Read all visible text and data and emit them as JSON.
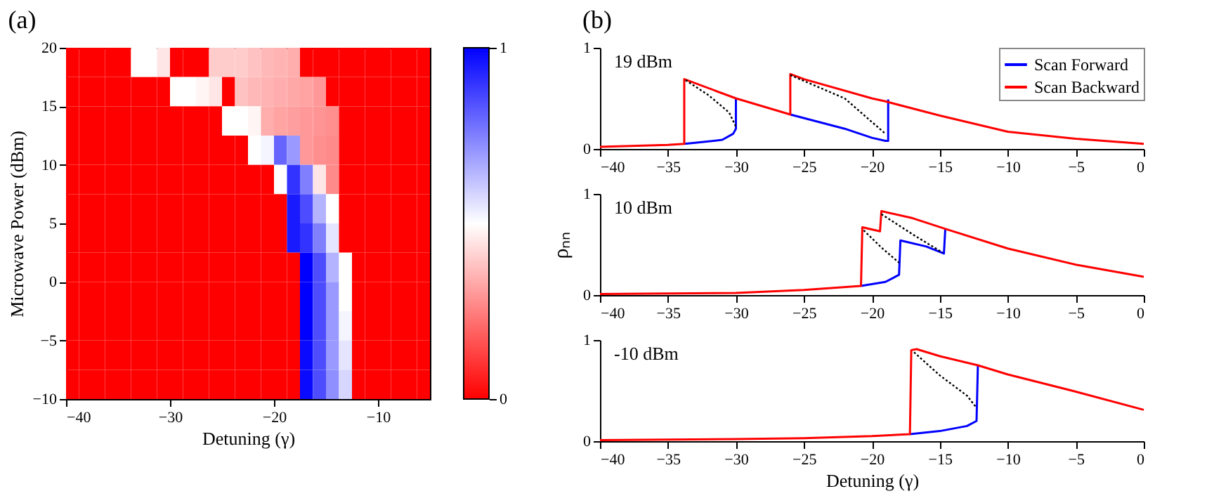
{
  "chart_data": [
    {
      "type": "heatmap",
      "title": "(a)",
      "xlabel": "Detuning (γ)",
      "ylabel": "Microwave Power (dBm)",
      "x": [
        -39.375,
        -38.125,
        -36.875,
        -35.625,
        -34.375,
        -33.125,
        -31.875,
        -30.625,
        -29.375,
        -28.125,
        -26.875,
        -25.625,
        -24.375,
        -23.125,
        -21.875,
        -20.625,
        -19.375,
        -18.125,
        -16.875,
        -15.625,
        -14.375,
        -13.125,
        -11.875,
        -10.625,
        -9.375,
        -8.125,
        -6.875,
        -5.625
      ],
      "y": [
        18.75,
        16.25,
        13.75,
        11.25,
        8.75,
        6.25,
        3.75,
        1.25,
        -1.25,
        -3.75,
        -6.25,
        -8.75
      ],
      "cells": [
        [
          0,
          0,
          0,
          0,
          0,
          0.5,
          0.5,
          0.45,
          0,
          0,
          0,
          0.4,
          0.4,
          0.4,
          0.38,
          0.36,
          0.35,
          0.34,
          0,
          0,
          0,
          0,
          0,
          0,
          0,
          0,
          0,
          0
        ],
        [
          0,
          0,
          0,
          0,
          0,
          0,
          0,
          0,
          0.5,
          0.5,
          0.48,
          0.45,
          0,
          0.38,
          0.36,
          0.35,
          0.34,
          0.33,
          0.32,
          0.3,
          0,
          0,
          0,
          0,
          0,
          0,
          0,
          0
        ],
        [
          0,
          0,
          0,
          0,
          0,
          0,
          0,
          0,
          0,
          0,
          0,
          0,
          0.5,
          0.5,
          0.48,
          0.34,
          0.32,
          0.31,
          0.3,
          0.29,
          0.28,
          0,
          0,
          0,
          0,
          0,
          0,
          0
        ],
        [
          0,
          0,
          0,
          0,
          0,
          0,
          0,
          0,
          0,
          0,
          0,
          0,
          0,
          0,
          0.5,
          0.52,
          0.8,
          0.7,
          0.3,
          0.28,
          0.27,
          0,
          0,
          0,
          0,
          0,
          0,
          0
        ],
        [
          0,
          0,
          0,
          0,
          0,
          0,
          0,
          0,
          0,
          0,
          0,
          0,
          0,
          0,
          0,
          0,
          0.5,
          0.9,
          0.75,
          0.45,
          0.27,
          0,
          0,
          0,
          0,
          0,
          0,
          0
        ],
        [
          0,
          0,
          0,
          0,
          0,
          0,
          0,
          0,
          0,
          0,
          0,
          0,
          0,
          0,
          0,
          0,
          0,
          0.95,
          0.85,
          0.65,
          0.5,
          0,
          0,
          0,
          0,
          0,
          0,
          0
        ],
        [
          0,
          0,
          0,
          0,
          0,
          0,
          0,
          0,
          0,
          0,
          0,
          0,
          0,
          0,
          0,
          0,
          0,
          0.95,
          0.9,
          0.75,
          0.55,
          0,
          0,
          0,
          0,
          0,
          0,
          0
        ],
        [
          0,
          0,
          0,
          0,
          0,
          0,
          0,
          0,
          0,
          0,
          0,
          0,
          0,
          0,
          0,
          0,
          0,
          0,
          1,
          0.85,
          0.65,
          0.5,
          0,
          0,
          0,
          0,
          0,
          0
        ],
        [
          0,
          0,
          0,
          0,
          0,
          0,
          0,
          0,
          0,
          0,
          0,
          0,
          0,
          0,
          0,
          0,
          0,
          0,
          1,
          0.85,
          0.7,
          0.5,
          0,
          0,
          0,
          0,
          0,
          0
        ],
        [
          0,
          0,
          0,
          0,
          0,
          0,
          0,
          0,
          0,
          0,
          0,
          0,
          0,
          0,
          0,
          0,
          0,
          0,
          1,
          0.85,
          0.7,
          0.52,
          0,
          0,
          0,
          0,
          0,
          0
        ],
        [
          0,
          0,
          0,
          0,
          0,
          0,
          0,
          0,
          0,
          0,
          0,
          0,
          0,
          0,
          0,
          0,
          0,
          0,
          0.98,
          0.85,
          0.7,
          0.55,
          0,
          0,
          0,
          0,
          0,
          0
        ],
        [
          0,
          0,
          0,
          0,
          0,
          0,
          0,
          0,
          0,
          0,
          0,
          0,
          0,
          0,
          0,
          0,
          0,
          0,
          0.98,
          0.85,
          0.72,
          0.58,
          0,
          0,
          0,
          0,
          0,
          0
        ]
      ],
      "xlim": [
        -40,
        -5
      ],
      "xticks": [
        -40,
        -30,
        -20,
        -10
      ],
      "ylim": [
        -10,
        20
      ],
      "yticks": [
        -10,
        -5,
        0,
        5,
        10,
        15,
        20
      ],
      "clim": [
        0,
        1
      ],
      "cticks": [
        0,
        1
      ]
    },
    {
      "type": "line",
      "title": "(b)",
      "annotations": [
        "19 dBm"
      ],
      "legend": "top right",
      "xlim": [
        -40,
        0
      ],
      "xticks": [
        -40,
        -35,
        -30,
        -25,
        -20,
        -15,
        -10,
        -5,
        0
      ],
      "ylim": [
        0,
        1
      ],
      "yticks": [
        0,
        1
      ],
      "series": [
        {
          "name": "Scan Forward",
          "color": "#0000ff",
          "x": [
            -33.8,
            -33,
            -31,
            -30.2,
            -30,
            -30,
            -28,
            -26,
            -22,
            -20,
            -19,
            -18.8,
            -18.8
          ],
          "values": [
            0.05,
            0.06,
            0.09,
            0.15,
            0.2,
            0.5,
            null,
            0.34,
            0.2,
            0.11,
            0.08,
            0.08,
            0.49
          ]
        },
        {
          "name": "Scan Backward",
          "color": "#ff0000",
          "x": [
            0,
            -5,
            -10,
            -15,
            -19,
            -20,
            -25,
            -26,
            -26,
            -28,
            -30,
            -33.8,
            -33.8,
            -35,
            -40
          ],
          "values": [
            0.05,
            0.1,
            0.17,
            0.33,
            0.47,
            0.5,
            0.69,
            0.74,
            0.34,
            0.42,
            0.5,
            0.69,
            0.05,
            0.04,
            0.02
          ]
        },
        {
          "color": "#000000",
          "line_style": "dotted",
          "x": [
            -33.7,
            -32,
            -30.5,
            -30
          ],
          "values": [
            0.68,
            0.53,
            0.36,
            0.22
          ]
        },
        {
          "color": "#000000",
          "line_style": "dotted",
          "x": [
            -26,
            -22,
            -19
          ],
          "values": [
            0.73,
            0.5,
            0.15
          ]
        }
      ]
    },
    {
      "type": "line",
      "annotations": [
        "10 dBm"
      ],
      "ylabel": "ρₙₙ",
      "xlim": [
        -40,
        0
      ],
      "xticks": [
        -40,
        -35,
        -30,
        -25,
        -20,
        -15,
        -10,
        -5,
        0
      ],
      "ylim": [
        0,
        1
      ],
      "yticks": [
        0,
        1
      ],
      "series": [
        {
          "color": "#0000ff",
          "x": [
            -20.8,
            -19,
            -18,
            -17.9,
            -16,
            -14.7,
            -14.6
          ],
          "values": [
            0.09,
            0.13,
            0.2,
            0.54,
            0.48,
            0.41,
            0.65
          ]
        },
        {
          "color": "#ff0000",
          "x": [
            0,
            -5,
            -10,
            -14.5,
            -17,
            -19.3,
            -19.4,
            -20.7,
            -20.8,
            -25,
            -30,
            -40
          ],
          "values": [
            0.18,
            0.3,
            0.46,
            0.65,
            0.76,
            0.83,
            0.63,
            0.67,
            0.09,
            0.05,
            0.02,
            0.01
          ]
        },
        {
          "color": "#000000",
          "line_style": "dotted",
          "x": [
            -20.6,
            -19.3,
            -18
          ],
          "values": [
            0.64,
            0.47,
            0.32
          ]
        },
        {
          "color": "#000000",
          "line_style": "dotted",
          "x": [
            -19.3,
            -17,
            -14.8
          ],
          "values": [
            0.8,
            0.6,
            0.42
          ]
        }
      ]
    },
    {
      "type": "line",
      "annotations": [
        "-10 dBm"
      ],
      "xlabel": "Detuning (γ)",
      "xlim": [
        -40,
        0
      ],
      "xticks": [
        -40,
        -35,
        -30,
        -25,
        -20,
        -15,
        -10,
        -5,
        0
      ],
      "ylim": [
        0,
        1
      ],
      "yticks": [
        0,
        1
      ],
      "series": [
        {
          "color": "#0000ff",
          "x": [
            -17.2,
            -15,
            -13,
            -12.3,
            -12.2
          ],
          "values": [
            0.07,
            0.1,
            0.15,
            0.2,
            0.75
          ]
        },
        {
          "color": "#ff0000",
          "x": [
            0,
            -5,
            -10,
            -12.2,
            -15,
            -16.7,
            -17.1,
            -17.2,
            -20,
            -25,
            -30,
            -40
          ],
          "values": [
            0.31,
            0.49,
            0.66,
            0.75,
            0.84,
            0.91,
            0.9,
            0.07,
            0.05,
            0.03,
            0.02,
            0.01
          ]
        },
        {
          "color": "#000000",
          "line_style": "dotted",
          "x": [
            -16.9,
            -15,
            -13,
            -12.3
          ],
          "values": [
            0.88,
            0.65,
            0.45,
            0.33
          ]
        }
      ]
    }
  ]
}
